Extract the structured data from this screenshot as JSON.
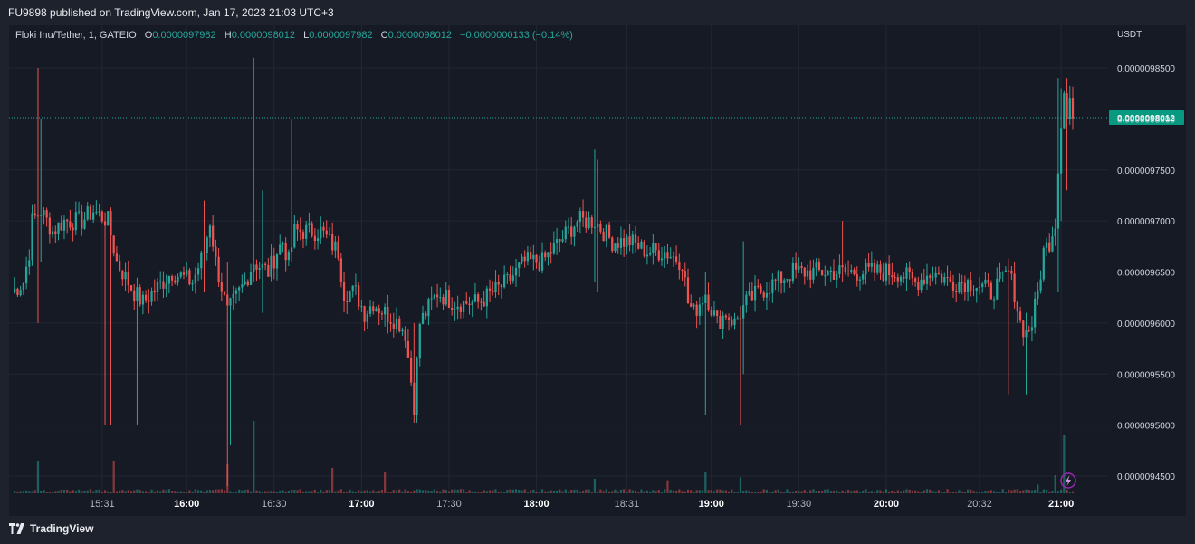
{
  "header": {
    "published": "FU9898 published on TradingView.com, Jan 17, 2023 21:03 UTC+3"
  },
  "footer": {
    "brand": "TradingView"
  },
  "legend": {
    "title": "Floki Inu/Tether, 1, GATEIO",
    "o_key": "O",
    "o_val": "0.0000097982",
    "h_key": "H",
    "h_val": "0.0000098012",
    "l_key": "L",
    "l_val": "0.0000097982",
    "c_key": "C",
    "c_val": "0.0000098012",
    "change": "−0.0000000133 (−0.14%)"
  },
  "colors": {
    "up": "#26a69a",
    "down": "#ef5350",
    "background": "#161a25",
    "grid": "#232734",
    "price_tag": "#089981"
  },
  "icons": {
    "logo": "tradingview-logo-icon",
    "replay": "lightning-icon"
  },
  "chart_data": {
    "type": "candlestick",
    "symbol": "Floki Inu/Tether",
    "interval": "1",
    "exchange": "GATEIO",
    "currency": "USDT",
    "ylim": [
      9.44e-06,
      9.86e-06
    ],
    "y_ticks": [
      {
        "value": 9.85e-06,
        "label": "0.0000098500"
      },
      {
        "value": 9.8e-06,
        "label": "0.0000098000"
      },
      {
        "value": 9.75e-06,
        "label": "0.0000097500"
      },
      {
        "value": 9.7e-06,
        "label": "0.0000097000"
      },
      {
        "value": 9.65e-06,
        "label": "0.0000096500"
      },
      {
        "value": 9.6e-06,
        "label": "0.0000096000"
      },
      {
        "value": 9.55e-06,
        "label": "0.0000095500"
      },
      {
        "value": 9.5e-06,
        "label": "0.0000095000"
      },
      {
        "value": 9.45e-06,
        "label": "0.0000094500"
      }
    ],
    "x_ticks": [
      {
        "minute": 31,
        "label": "15:31",
        "bold": false
      },
      {
        "minute": 60,
        "label": "16:00",
        "bold": true
      },
      {
        "minute": 90,
        "label": "16:30",
        "bold": false
      },
      {
        "minute": 120,
        "label": "17:00",
        "bold": true
      },
      {
        "minute": 150,
        "label": "17:30",
        "bold": false
      },
      {
        "minute": 180,
        "label": "18:00",
        "bold": true
      },
      {
        "minute": 211,
        "label": "18:31",
        "bold": false
      },
      {
        "minute": 240,
        "label": "19:00",
        "bold": true
      },
      {
        "minute": 270,
        "label": "19:30",
        "bold": false
      },
      {
        "minute": 300,
        "label": "20:00",
        "bold": true
      },
      {
        "minute": 332,
        "label": "20:32",
        "bold": false
      },
      {
        "minute": 360,
        "label": "21:00",
        "bold": true
      }
    ],
    "last_price": 9.8012e-06,
    "last_price_label": "0.0000098012",
    "anchors": [
      {
        "m": 0,
        "p": 9.63e-06
      },
      {
        "m": 4,
        "p": 9.64e-06
      },
      {
        "m": 6,
        "p": 9.67e-06
      },
      {
        "m": 7,
        "p": 9.7e-06
      },
      {
        "m": 10,
        "p": 9.71e-06
      },
      {
        "m": 12,
        "p": 9.7e-06
      },
      {
        "m": 14,
        "p": 9.69e-06
      },
      {
        "m": 18,
        "p": 9.7e-06
      },
      {
        "m": 24,
        "p": 9.7e-06
      },
      {
        "m": 28,
        "p": 9.71e-06
      },
      {
        "m": 33,
        "p": 9.7e-06
      },
      {
        "m": 36,
        "p": 9.66e-06
      },
      {
        "m": 42,
        "p": 9.63e-06
      },
      {
        "m": 45,
        "p": 9.62e-06
      },
      {
        "m": 55,
        "p": 9.65e-06
      },
      {
        "m": 62,
        "p": 9.64e-06
      },
      {
        "m": 66,
        "p": 9.67e-06
      },
      {
        "m": 68,
        "p": 9.7e-06
      },
      {
        "m": 70,
        "p": 9.66e-06
      },
      {
        "m": 74,
        "p": 9.61e-06
      },
      {
        "m": 80,
        "p": 9.64e-06
      },
      {
        "m": 83,
        "p": 9.66e-06
      },
      {
        "m": 88,
        "p": 9.65e-06
      },
      {
        "m": 91,
        "p": 9.67e-06
      },
      {
        "m": 93,
        "p": 9.68e-06
      },
      {
        "m": 95,
        "p": 9.66e-06
      },
      {
        "m": 97,
        "p": 9.69e-06
      },
      {
        "m": 100,
        "p": 9.69e-06
      },
      {
        "m": 106,
        "p": 9.69e-06
      },
      {
        "m": 109,
        "p": 9.68e-06
      },
      {
        "m": 112,
        "p": 9.67e-06
      },
      {
        "m": 114,
        "p": 9.63e-06
      },
      {
        "m": 118,
        "p": 9.63e-06
      },
      {
        "m": 121,
        "p": 9.61e-06
      },
      {
        "m": 124,
        "p": 9.62e-06
      },
      {
        "m": 128,
        "p": 9.61e-06
      },
      {
        "m": 133,
        "p": 9.6e-06
      },
      {
        "m": 135,
        "p": 9.59e-06
      },
      {
        "m": 138,
        "p": 9.52e-06
      },
      {
        "m": 140,
        "p": 9.6e-06
      },
      {
        "m": 146,
        "p": 9.63e-06
      },
      {
        "m": 152,
        "p": 9.62e-06
      },
      {
        "m": 156,
        "p": 9.62e-06
      },
      {
        "m": 160,
        "p": 9.62e-06
      },
      {
        "m": 165,
        "p": 9.63e-06
      },
      {
        "m": 170,
        "p": 9.64e-06
      },
      {
        "m": 176,
        "p": 9.66e-06
      },
      {
        "m": 182,
        "p": 9.66e-06
      },
      {
        "m": 188,
        "p": 9.68e-06
      },
      {
        "m": 194,
        "p": 9.7e-06
      },
      {
        "m": 200,
        "p": 9.7e-06
      },
      {
        "m": 206,
        "p": 9.68e-06
      },
      {
        "m": 212,
        "p": 9.68e-06
      },
      {
        "m": 218,
        "p": 9.67e-06
      },
      {
        "m": 224,
        "p": 9.67e-06
      },
      {
        "m": 230,
        "p": 9.66e-06
      },
      {
        "m": 232,
        "p": 9.62e-06
      },
      {
        "m": 234,
        "p": 9.61e-06
      },
      {
        "m": 236,
        "p": 9.62e-06
      },
      {
        "m": 238,
        "p": 9.63e-06
      },
      {
        "m": 242,
        "p": 9.6e-06
      },
      {
        "m": 245,
        "p": 9.61e-06
      },
      {
        "m": 248,
        "p": 9.6e-06
      },
      {
        "m": 252,
        "p": 9.62e-06
      },
      {
        "m": 256,
        "p": 9.63e-06
      },
      {
        "m": 262,
        "p": 9.64e-06
      },
      {
        "m": 268,
        "p": 9.65e-06
      },
      {
        "m": 274,
        "p": 9.65e-06
      },
      {
        "m": 282,
        "p": 9.65e-06
      },
      {
        "m": 290,
        "p": 9.65e-06
      },
      {
        "m": 296,
        "p": 9.65e-06
      },
      {
        "m": 304,
        "p": 9.65e-06
      },
      {
        "m": 310,
        "p": 9.64e-06
      },
      {
        "m": 316,
        "p": 9.65e-06
      },
      {
        "m": 322,
        "p": 9.64e-06
      },
      {
        "m": 326,
        "p": 9.64e-06
      },
      {
        "m": 330,
        "p": 9.64e-06
      },
      {
        "m": 336,
        "p": 9.63e-06
      },
      {
        "m": 342,
        "p": 9.65e-06
      },
      {
        "m": 344,
        "p": 9.63e-06
      },
      {
        "m": 346,
        "p": 9.6e-06
      },
      {
        "m": 348,
        "p": 9.59e-06
      },
      {
        "m": 350,
        "p": 9.6e-06
      },
      {
        "m": 352,
        "p": 9.63e-06
      },
      {
        "m": 354,
        "p": 9.67e-06
      },
      {
        "m": 356,
        "p": 9.68e-06
      },
      {
        "m": 357,
        "p": 9.69e-06
      },
      {
        "m": 358,
        "p": 9.7e-06
      },
      {
        "m": 359,
        "p": 9.75e-06
      },
      {
        "m": 360,
        "p": 9.8e-06
      },
      {
        "m": 361,
        "p": 9.83e-06
      },
      {
        "m": 362,
        "p": 9.8e-06
      },
      {
        "m": 363,
        "p": 9.82e-06
      },
      {
        "m": 364,
        "p": 9.8e-06
      }
    ],
    "spikes": [
      {
        "m": 9,
        "low": 9.6e-06,
        "high": 9.85e-06
      },
      {
        "m": 10,
        "low": 9.66e-06,
        "high": 9.8e-06
      },
      {
        "m": 32,
        "low": 9.5e-06,
        "high": 9.7e-06
      },
      {
        "m": 34,
        "low": 9.5e-06,
        "high": 9.66e-06
      },
      {
        "m": 43,
        "low": 9.5e-06,
        "high": 9.63e-06
      },
      {
        "m": 66,
        "low": 9.63e-06,
        "high": 9.72e-06
      },
      {
        "m": 74,
        "low": 9.44e-06,
        "high": 9.66e-06
      },
      {
        "m": 75,
        "low": 9.48e-06,
        "high": 9.62e-06
      },
      {
        "m": 83,
        "low": 9.64e-06,
        "high": 9.86e-06
      },
      {
        "m": 86,
        "low": 9.61e-06,
        "high": 9.73e-06
      },
      {
        "m": 96,
        "low": 9.66e-06,
        "high": 9.8e-06
      },
      {
        "m": 138,
        "low": 9.51e-06,
        "high": 9.6e-06
      },
      {
        "m": 200,
        "low": 9.64e-06,
        "high": 9.77e-06
      },
      {
        "m": 201,
        "low": 9.63e-06,
        "high": 9.76e-06
      },
      {
        "m": 238,
        "low": 9.51e-06,
        "high": 9.65e-06
      },
      {
        "m": 250,
        "low": 9.5e-06,
        "high": 9.61e-06
      },
      {
        "m": 251,
        "low": 9.55e-06,
        "high": 9.68e-06
      },
      {
        "m": 285,
        "low": 9.64e-06,
        "high": 9.7e-06
      },
      {
        "m": 342,
        "low": 9.53e-06,
        "high": 9.63e-06
      },
      {
        "m": 348,
        "low": 9.53e-06,
        "high": 9.61e-06
      },
      {
        "m": 359,
        "low": 9.63e-06,
        "high": 9.84e-06
      },
      {
        "m": 360,
        "low": 9.7e-06,
        "high": 9.83e-06
      },
      {
        "m": 362,
        "low": 9.73e-06,
        "high": 9.84e-06
      }
    ],
    "volume_spikes": [
      {
        "m": 9,
        "v": 0.45,
        "dir": "up"
      },
      {
        "m": 35,
        "v": 0.45,
        "dir": "down"
      },
      {
        "m": 74,
        "v": 0.4,
        "dir": "down"
      },
      {
        "m": 83,
        "v": 1.0,
        "dir": "up"
      },
      {
        "m": 110,
        "v": 0.35,
        "dir": "down"
      },
      {
        "m": 128,
        "v": 0.3,
        "dir": "down"
      },
      {
        "m": 200,
        "v": 0.2,
        "dir": "up"
      },
      {
        "m": 225,
        "v": 0.18,
        "dir": "down"
      },
      {
        "m": 238,
        "v": 0.3,
        "dir": "up"
      },
      {
        "m": 250,
        "v": 0.22,
        "dir": "up"
      },
      {
        "m": 352,
        "v": 0.12,
        "dir": "up"
      },
      {
        "m": 358,
        "v": 0.25,
        "dir": "up"
      },
      {
        "m": 361,
        "v": 0.8,
        "dir": "up"
      }
    ]
  }
}
